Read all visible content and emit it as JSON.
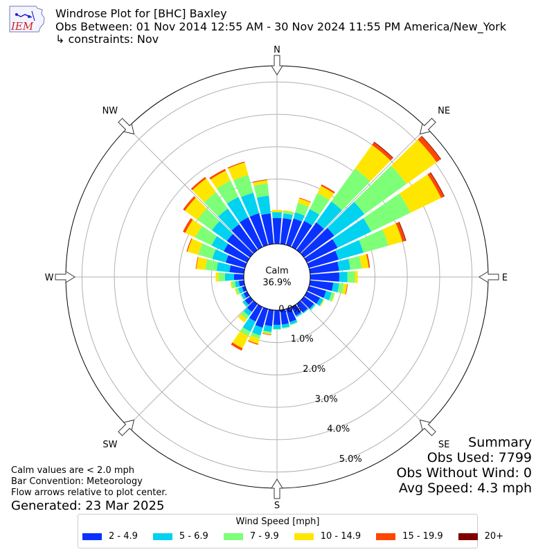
{
  "title": {
    "line1": "Windrose Plot for [BHC] Baxley",
    "line2": "Obs Between: 01 Nov 2014 12:55 AM - 30 Nov 2024 11:55 PM America/New_York",
    "line3": "↳ constraints: Nov"
  },
  "logo": {
    "text": "IEM"
  },
  "footer": {
    "calm_note": "Calm values are < 2.0 mph",
    "bar_convention": "Bar Convention: Meteorology",
    "flow_note": "Flow arrows relative to plot center.",
    "generated": "Generated: 23 Mar 2025"
  },
  "summary": {
    "title": "Summary",
    "obs_used": "Obs Used: 7799",
    "obs_without_wind": "Obs Without Wind: 0",
    "avg_speed": "Avg Speed: 4.3 mph"
  },
  "colors": {
    "bins": [
      "#0a32ff",
      "#00d2f0",
      "#7dff78",
      "#ffe600",
      "#ff4600",
      "#800000"
    ],
    "grid": "#b0b0b0",
    "axis": "#000000"
  },
  "chart_data": {
    "type": "windrose",
    "center_label": "Calm",
    "calm_percent": "36.9%",
    "unit": "%",
    "radial_ticks": [
      0.0,
      1.0,
      2.0,
      3.0,
      4.0,
      5.0
    ],
    "radial_tick_labels": [
      "0.0%",
      "1.0%",
      "2.0%",
      "3.0%",
      "4.0%",
      "5.0%"
    ],
    "r_max": 5.5,
    "compass_labels": [
      "N",
      "NE",
      "E",
      "SE",
      "S",
      "SW",
      "W",
      "NW"
    ],
    "legend_title": "Wind Speed [mph]",
    "legend_entries": [
      "2 - 4.9",
      "5 - 6.9",
      "7 - 9.9",
      "10 - 14.9",
      "15 - 19.9",
      "20+"
    ],
    "directions_deg": [
      0,
      10,
      20,
      30,
      40,
      50,
      60,
      70,
      80,
      90,
      100,
      110,
      120,
      130,
      140,
      150,
      160,
      170,
      180,
      190,
      200,
      210,
      220,
      230,
      240,
      250,
      260,
      270,
      280,
      290,
      300,
      310,
      320,
      330,
      340,
      350
    ],
    "cumulative_percent": [
      [
        0.8,
        0.98,
        0.98,
        1.05,
        1.05,
        1.05
      ],
      [
        0.8,
        0.95,
        1.02,
        1.05,
        1.05,
        1.05
      ],
      [
        0.85,
        1.05,
        1.35,
        1.5,
        1.52,
        1.52
      ],
      [
        0.9,
        1.3,
        1.85,
        2.1,
        2.15,
        2.15
      ],
      [
        1.05,
        1.85,
        3.1,
        4.0,
        4.1,
        4.12
      ],
      [
        1.15,
        2.3,
        3.9,
        5.05,
        5.2,
        5.22
      ],
      [
        1.05,
        2.2,
        3.55,
        4.6,
        4.7,
        4.72
      ],
      [
        0.95,
        1.75,
        2.55,
        3.0,
        3.1,
        3.12
      ],
      [
        0.9,
        1.25,
        1.6,
        1.82,
        1.86,
        1.86
      ],
      [
        0.9,
        1.15,
        1.38,
        1.47,
        1.47,
        1.47
      ],
      [
        0.72,
        0.9,
        1.05,
        1.15,
        1.17,
        1.17
      ],
      [
        0.55,
        0.73,
        0.82,
        0.84,
        0.84,
        0.84
      ],
      [
        0.45,
        0.56,
        0.58,
        0.6,
        0.6,
        0.6
      ],
      [
        0.38,
        0.43,
        0.45,
        0.45,
        0.45,
        0.45
      ],
      [
        0.33,
        0.36,
        0.37,
        0.37,
        0.37,
        0.37
      ],
      [
        0.3,
        0.35,
        0.36,
        0.36,
        0.36,
        0.36
      ],
      [
        0.42,
        0.5,
        0.52,
        0.52,
        0.52,
        0.52
      ],
      [
        0.45,
        0.55,
        0.58,
        0.58,
        0.58,
        0.58
      ],
      [
        0.45,
        0.58,
        0.6,
        0.6,
        0.6,
        0.6
      ],
      [
        0.5,
        0.68,
        0.73,
        0.76,
        0.78,
        0.78
      ],
      [
        0.6,
        0.85,
        0.95,
        1.12,
        1.15,
        1.15
      ],
      [
        0.5,
        0.85,
        1.0,
        1.42,
        1.5,
        1.5
      ],
      [
        0.3,
        0.45,
        0.58,
        0.7,
        0.7,
        0.7
      ],
      [
        0.2,
        0.28,
        0.3,
        0.3,
        0.3,
        0.3
      ],
      [
        0.12,
        0.2,
        0.23,
        0.23,
        0.23,
        0.23
      ],
      [
        0.1,
        0.22,
        0.3,
        0.33,
        0.33,
        0.33
      ],
      [
        0.16,
        0.28,
        0.38,
        0.42,
        0.42,
        0.42
      ],
      [
        0.3,
        0.58,
        0.78,
        0.87,
        0.87,
        0.87
      ],
      [
        0.45,
        0.85,
        1.2,
        1.48,
        1.5,
        1.5
      ],
      [
        0.62,
        1.05,
        1.5,
        1.85,
        1.88,
        1.88
      ],
      [
        0.8,
        1.22,
        1.78,
        2.12,
        2.2,
        2.2
      ],
      [
        0.88,
        1.45,
        2.0,
        2.48,
        2.55,
        2.55
      ],
      [
        0.98,
        1.58,
        2.2,
        2.72,
        2.78,
        2.78
      ],
      [
        1.02,
        1.72,
        2.28,
        2.62,
        2.68,
        2.68
      ],
      [
        1.02,
        1.68,
        2.25,
        2.65,
        2.68,
        2.68
      ],
      [
        0.95,
        1.5,
        1.88,
        1.98,
        2.0,
        2.0
      ]
    ]
  }
}
